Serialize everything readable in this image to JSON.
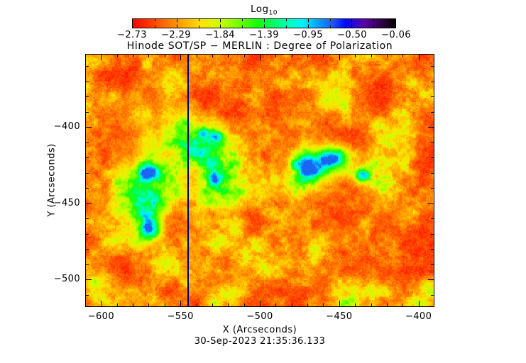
{
  "figure": {
    "title": "Hinode SOT/SP − MERLIN : Degree of Polarization",
    "background_color": "#ffffff",
    "text_color": "#000000"
  },
  "colorbar": {
    "label": "Log",
    "label_sub": "10",
    "tick_labels": [
      "-2.73",
      "-2.29",
      "-1.84",
      "-1.39",
      "-0.95",
      "-0.50",
      "-0.06"
    ]
  },
  "chart_data": {
    "type": "heatmap",
    "title": "Hinode SOT/SP − MERLIN : Degree of Polarization",
    "xlabel": "X (Arcseconds)",
    "ylabel": "Y (Arcseconds)",
    "timestamp": "30-Sep-2023 21:35:36.133",
    "x_range": [
      -610,
      -390
    ],
    "y_range": [
      -518,
      -352
    ],
    "x_ticks": [
      -600,
      -550,
      -500,
      -450,
      -400
    ],
    "y_ticks": [
      -400,
      -450,
      -500
    ],
    "minor_tick_step": 10,
    "grid": false,
    "legend": "none",
    "colorbar": {
      "label": "Log10",
      "tick_values": [
        -2.73,
        -2.29,
        -1.84,
        -1.39,
        -0.95,
        -0.5,
        -0.06
      ],
      "range": [
        -2.73,
        -0.06
      ]
    },
    "artifact_line_x": -545,
    "artifact_line_color": "#000080",
    "colormap_stops": [
      [
        0.0,
        "#ff0000"
      ],
      [
        0.08,
        "#ff4600"
      ],
      [
        0.17,
        "#ff9600"
      ],
      [
        0.26,
        "#ffe100"
      ],
      [
        0.33,
        "#cdff00"
      ],
      [
        0.4,
        "#78ff00"
      ],
      [
        0.47,
        "#19ff00"
      ],
      [
        0.53,
        "#00ff5a"
      ],
      [
        0.6,
        "#00ffc3"
      ],
      [
        0.65,
        "#00eeff"
      ],
      [
        0.7,
        "#00a8ff"
      ],
      [
        0.76,
        "#2257f0"
      ],
      [
        0.81,
        "#0008ff"
      ],
      [
        0.88,
        "#5a00aa"
      ],
      [
        0.95,
        "#2d0040"
      ],
      [
        1.0,
        "#000000"
      ]
    ],
    "noise": {
      "octaves": [
        {
          "cell": 30,
          "w": 0.32
        },
        {
          "cell": 15,
          "w": 0.25
        },
        {
          "cell": 7,
          "w": 0.2
        },
        {
          "cell": 3.2,
          "w": 0.13
        },
        {
          "cell": 1.5,
          "w": 0.1
        }
      ],
      "base_offset": 0.02,
      "base_gain": 0.62,
      "base_power": 2.3,
      "jitter": 0.05
    },
    "features": [
      {
        "x": -462,
        "y": -424,
        "sx": 12,
        "sy": 10,
        "a": 0.34
      },
      {
        "x": -470,
        "y": -425.5,
        "sx": 5.5,
        "sy": 5,
        "a": 0.4
      },
      {
        "x": -454,
        "y": -420,
        "sx": 5.5,
        "sy": 4.5,
        "a": 0.42
      },
      {
        "x": -435,
        "y": -432,
        "sx": 3.2,
        "sy": 3,
        "a": 0.45
      },
      {
        "x": -435,
        "y": -432,
        "sx": 6,
        "sy": 5.5,
        "a": 0.18
      },
      {
        "x": -570,
        "y": -430,
        "sx": 4.5,
        "sy": 4.5,
        "a": 0.42
      },
      {
        "x": -569,
        "y": -466,
        "sx": 4.5,
        "sy": 5,
        "a": 0.42
      },
      {
        "x": -570,
        "y": -447,
        "sx": 8,
        "sy": 22,
        "a": 0.2
      },
      {
        "x": -576,
        "y": -438,
        "sx": 13,
        "sy": 26,
        "a": 0.13
      },
      {
        "x": -540,
        "y": -411,
        "sx": 11,
        "sy": 7,
        "a": 0.3
      },
      {
        "x": -529,
        "y": -437,
        "sx": 8,
        "sy": 11,
        "a": 0.26
      },
      {
        "x": -536,
        "y": -404,
        "sx": 3,
        "sy": 2.5,
        "a": 0.3
      },
      {
        "x": -527,
        "y": -406,
        "sx": 3,
        "sy": 2.5,
        "a": 0.3
      },
      {
        "x": -528,
        "y": -433,
        "sx": 3.5,
        "sy": 3,
        "a": 0.28
      },
      {
        "x": -520,
        "y": -509,
        "sx": 9,
        "sy": 6,
        "a": 0.2
      },
      {
        "x": -576,
        "y": -390,
        "sx": 8,
        "sy": 9,
        "a": 0.15
      },
      {
        "x": -551,
        "y": -398,
        "sx": 7,
        "sy": 5,
        "a": 0.16
      },
      {
        "x": -455,
        "y": -381,
        "sx": 12,
        "sy": 7,
        "a": 0.11
      },
      {
        "x": -600,
        "y": -505,
        "sx": 8,
        "sy": 8,
        "a": 0.15
      }
    ]
  }
}
